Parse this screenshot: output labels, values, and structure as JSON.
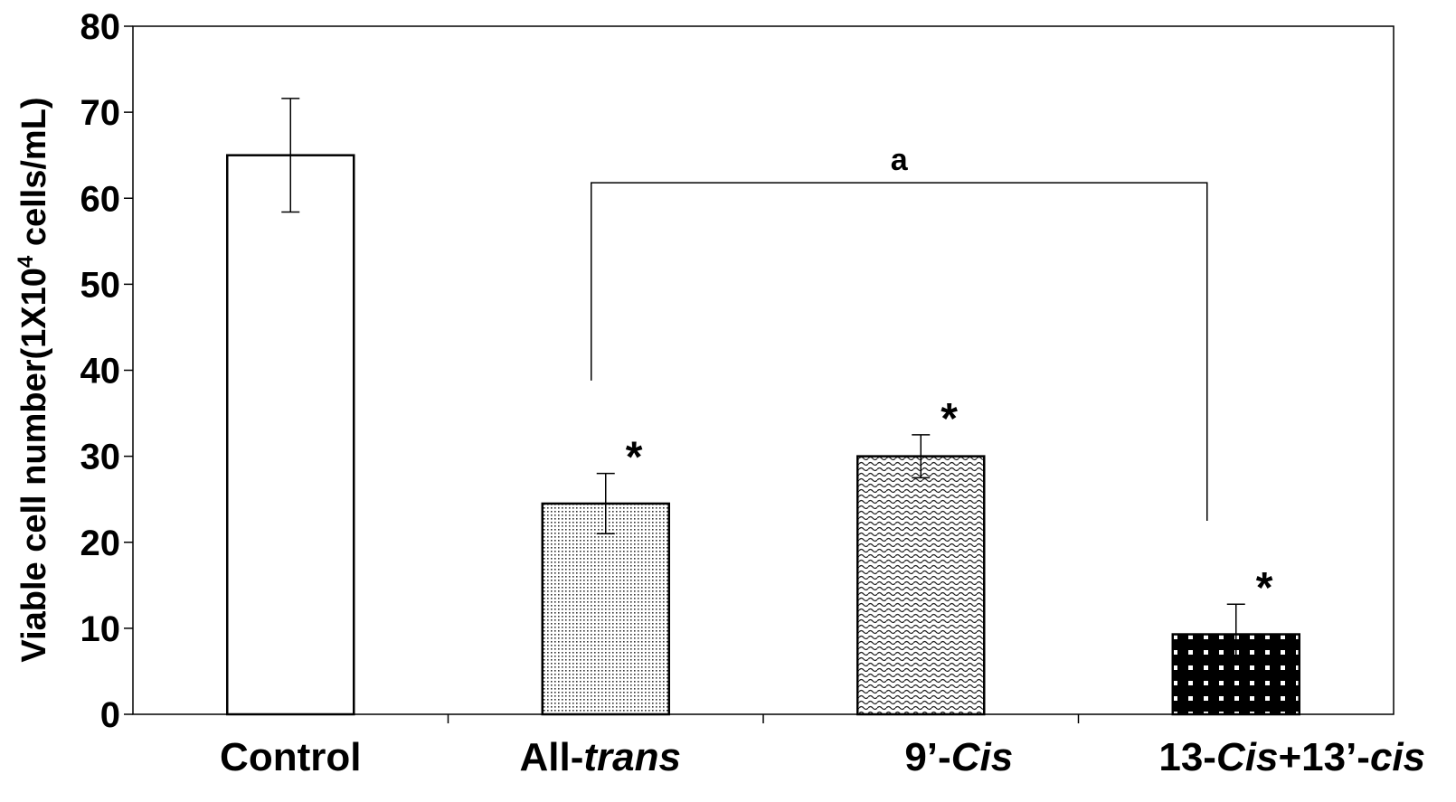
{
  "chart_data": {
    "type": "bar",
    "title": "",
    "xlabel": "",
    "ylabel_parts": {
      "base": "Viable cell number(1X10",
      "sup": "4",
      "tail": " cells/mL)"
    },
    "ylim": [
      0,
      80
    ],
    "yticks": [
      0,
      10,
      20,
      30,
      40,
      50,
      60,
      70,
      80
    ],
    "grid": false,
    "legend": "none",
    "categories": [
      {
        "parts": [
          {
            "text": "Control",
            "italic": false
          }
        ]
      },
      {
        "parts": [
          {
            "text": "All-",
            "italic": false
          },
          {
            "text": "trans",
            "italic": true
          }
        ]
      },
      {
        "parts": [
          {
            "text": "9’-",
            "italic": false
          },
          {
            "text": "Cis",
            "italic": true
          }
        ]
      },
      {
        "parts": [
          {
            "text": "13-",
            "italic": false
          },
          {
            "text": "Cis",
            "italic": true
          },
          {
            "text": "+13’-",
            "italic": false
          },
          {
            "text": "cis",
            "italic": true
          }
        ]
      }
    ],
    "values": [
      65,
      24.5,
      30,
      9.3
    ],
    "errors": [
      6.6,
      3.5,
      2.5,
      3.5
    ],
    "significance_markers": [
      "",
      "*",
      "*",
      "*"
    ],
    "bracket": {
      "from_category": 1,
      "to_category": 3,
      "label": "a"
    },
    "colors": {
      "axis": "#000000",
      "bar_stroke": "#000000",
      "control_fill": "#ffffff",
      "pattern_dark": "#000000",
      "pattern_light": "#ffffff"
    }
  }
}
